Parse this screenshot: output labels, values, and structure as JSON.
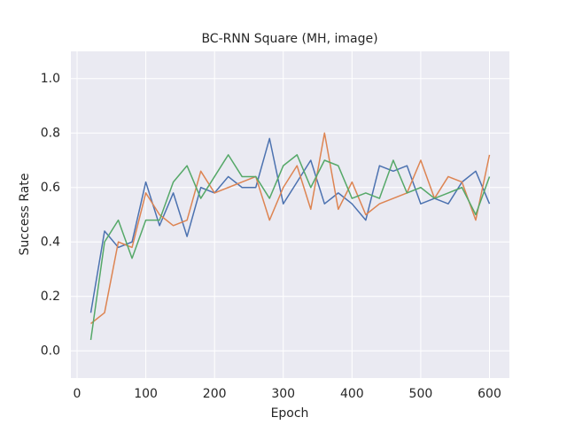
{
  "chart_data": {
    "type": "line",
    "title": "BC-RNN Square (MH, image)",
    "x_label": "Epoch",
    "y_label": "Success Rate",
    "x": [
      20,
      40,
      60,
      80,
      100,
      120,
      140,
      160,
      180,
      200,
      220,
      240,
      260,
      280,
      300,
      320,
      340,
      360,
      380,
      400,
      420,
      440,
      460,
      480,
      500,
      520,
      540,
      560,
      580,
      600
    ],
    "series": [
      {
        "color": "#4c72b0",
        "values": [
          0.14,
          0.44,
          0.38,
          0.4,
          0.62,
          0.46,
          0.58,
          0.42,
          0.6,
          0.58,
          0.64,
          0.6,
          0.6,
          0.78,
          0.54,
          0.62,
          0.7,
          0.54,
          0.58,
          0.54,
          0.48,
          0.68,
          0.66,
          0.68,
          0.54,
          0.56,
          0.54,
          0.62,
          0.66,
          0.54
        ]
      },
      {
        "color": "#dd8452",
        "values": [
          0.1,
          0.14,
          0.4,
          0.38,
          0.58,
          0.5,
          0.46,
          0.48,
          0.66,
          0.58,
          0.6,
          0.62,
          0.64,
          0.48,
          0.6,
          0.68,
          0.52,
          0.8,
          0.52,
          0.62,
          0.5,
          0.54,
          0.56,
          0.58,
          0.7,
          0.56,
          0.64,
          0.62,
          0.48,
          0.72
        ]
      },
      {
        "color": "#55a868",
        "values": [
          0.04,
          0.4,
          0.48,
          0.34,
          0.48,
          0.48,
          0.62,
          0.68,
          0.56,
          0.64,
          0.72,
          0.64,
          0.64,
          0.56,
          0.68,
          0.72,
          0.6,
          0.7,
          0.68,
          0.56,
          0.58,
          0.56,
          0.7,
          0.58,
          0.6,
          0.56,
          0.58,
          0.6,
          0.5,
          0.64
        ]
      }
    ],
    "xlim": [
      -9,
      629
    ],
    "ylim": [
      -0.1,
      1.1
    ],
    "xticks": [
      0,
      100,
      200,
      300,
      400,
      500,
      600
    ],
    "yticks": [
      {
        "value": 0,
        "label": "0.0"
      },
      0.2,
      0.4,
      0.6,
      0.8,
      {
        "value": 1,
        "label": "1.0"
      }
    ],
    "grid": true
  }
}
